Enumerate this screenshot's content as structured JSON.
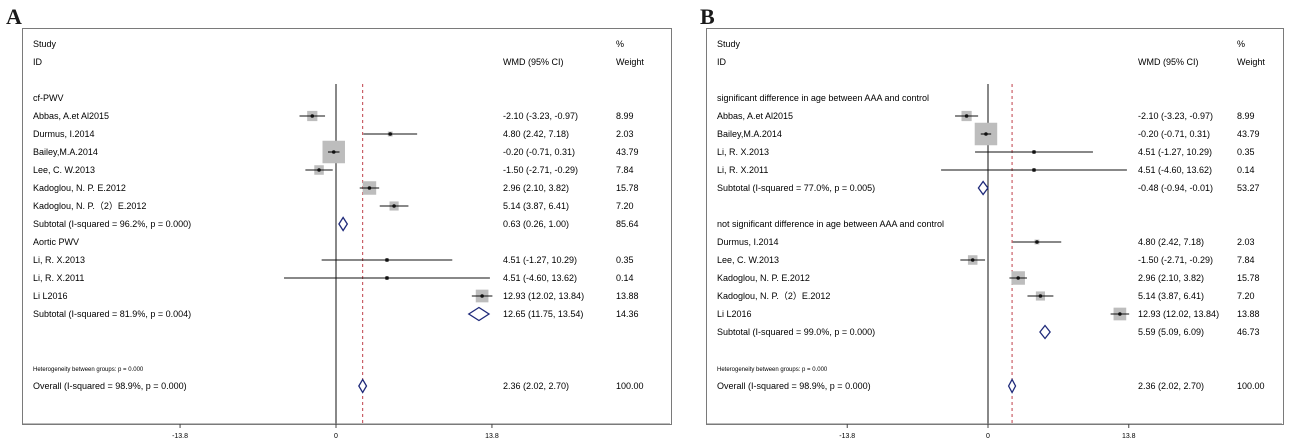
{
  "panels": [
    {
      "letter": "A",
      "header": {
        "study": "Study",
        "id": "ID",
        "wmd": "WMD (95% CI)",
        "pct": "%",
        "weight": "Weight"
      },
      "xticks": [
        -13.8,
        0,
        13.8
      ],
      "xtick_labels": [
        "-13.8",
        "0",
        "13.8"
      ],
      "overall_line": 2.36,
      "groups": [
        {
          "label": "cf-PWV",
          "studies": [
            {
              "name": "Abbas, A.et Al2015",
              "est": -2.1,
              "lo": -3.23,
              "hi": -0.97,
              "ci": "-2.10 (-3.23, -0.97)",
              "weight": "8.99",
              "w": 8.99
            },
            {
              "name": "Durmus, I.2014",
              "est": 4.8,
              "lo": 2.42,
              "hi": 7.18,
              "ci": "4.80 (2.42, 7.18)",
              "weight": "2.03",
              "w": 2.03
            },
            {
              "name": "Bailey,M.A.2014",
              "est": -0.2,
              "lo": -0.71,
              "hi": 0.31,
              "ci": "-0.20 (-0.71, 0.31)",
              "weight": "43.79",
              "w": 43.79
            },
            {
              "name": "Lee, C. W.2013",
              "est": -1.5,
              "lo": -2.71,
              "hi": -0.29,
              "ci": "-1.50 (-2.71, -0.29)",
              "weight": "7.84",
              "w": 7.84
            },
            {
              "name": "Kadoglou, N. P. E.2012",
              "est": 2.96,
              "lo": 2.1,
              "hi": 3.82,
              "ci": "2.96 (2.10, 3.82)",
              "weight": "15.78",
              "w": 15.78
            },
            {
              "name": "Kadoglou, N. P.（2）E.2012",
              "est": 5.14,
              "lo": 3.87,
              "hi": 6.41,
              "ci": "5.14 (3.87, 6.41)",
              "weight": "7.20",
              "w": 7.2
            }
          ],
          "subtotal": {
            "label": "Subtotal  (I-squared = 96.2%, p = 0.000)",
            "est": 0.63,
            "lo": 0.26,
            "hi": 1.0,
            "ci": "0.63 (0.26, 1.00)",
            "weight": "85.64"
          }
        },
        {
          "label": "Aortic PWV",
          "studies": [
            {
              "name": "Li, R. X.2013",
              "est": 4.51,
              "lo": -1.27,
              "hi": 10.29,
              "ci": "4.51 (-1.27, 10.29)",
              "weight": "0.35",
              "w": 0.35
            },
            {
              "name": "Li, R. X.2011",
              "est": 4.51,
              "lo": -4.6,
              "hi": 13.62,
              "ci": "4.51 (-4.60, 13.62)",
              "weight": "0.14",
              "w": 0.14
            },
            {
              "name": "Li L2016",
              "est": 12.93,
              "lo": 12.02,
              "hi": 13.84,
              "ci": "12.93 (12.02, 13.84)",
              "weight": "13.88",
              "w": 13.88
            }
          ],
          "subtotal": {
            "label": "Subtotal  (I-squared = 81.9%, p = 0.004)",
            "est": 12.65,
            "lo": 11.75,
            "hi": 13.54,
            "ci": "12.65 (11.75, 13.54)",
            "weight": "14.36"
          }
        }
      ],
      "heterogeneity": "Heterogeneity between groups: p = 0.000",
      "overall": {
        "label": "Overall  (I-squared = 98.9%, p = 0.000)",
        "est": 2.36,
        "lo": 2.02,
        "hi": 2.7,
        "ci": "2.36 (2.02, 2.70)",
        "weight": "100.00"
      }
    },
    {
      "letter": "B",
      "header": {
        "study": "Study",
        "id": "ID",
        "wmd": "WMD (95% CI)",
        "pct": "%",
        "weight": "Weight"
      },
      "xticks": [
        -13.8,
        0,
        13.8
      ],
      "xtick_labels": [
        "-13.8",
        "0",
        "13.8"
      ],
      "overall_line": 2.36,
      "groups": [
        {
          "label": "significant difference in age between AAA and control",
          "studies": [
            {
              "name": "Abbas, A.et Al2015",
              "est": -2.1,
              "lo": -3.23,
              "hi": -0.97,
              "ci": "-2.10 (-3.23, -0.97)",
              "weight": "8.99",
              "w": 8.99
            },
            {
              "name": "Bailey,M.A.2014",
              "est": -0.2,
              "lo": -0.71,
              "hi": 0.31,
              "ci": "-0.20 (-0.71, 0.31)",
              "weight": "43.79",
              "w": 43.79
            },
            {
              "name": "Li, R. X.2013",
              "est": 4.51,
              "lo": -1.27,
              "hi": 10.29,
              "ci": "4.51 (-1.27, 10.29)",
              "weight": "0.35",
              "w": 0.35
            },
            {
              "name": "Li, R. X.2011",
              "est": 4.51,
              "lo": -4.6,
              "hi": 13.62,
              "ci": "4.51 (-4.60, 13.62)",
              "weight": "0.14",
              "w": 0.14
            }
          ],
          "subtotal": {
            "label": "Subtotal  (I-squared = 77.0%, p = 0.005)",
            "est": -0.48,
            "lo": -0.94,
            "hi": -0.01,
            "ci": "-0.48 (-0.94, -0.01)",
            "weight": "53.27"
          }
        },
        {
          "label": "not significant difference in age between AAA and control",
          "studies": [
            {
              "name": "Durmus, I.2014",
              "est": 4.8,
              "lo": 2.42,
              "hi": 7.18,
              "ci": "4.80 (2.42, 7.18)",
              "weight": "2.03",
              "w": 2.03
            },
            {
              "name": "Lee, C. W.2013",
              "est": -1.5,
              "lo": -2.71,
              "hi": -0.29,
              "ci": "-1.50 (-2.71, -0.29)",
              "weight": "7.84",
              "w": 7.84
            },
            {
              "name": "Kadoglou, N. P. E.2012",
              "est": 2.96,
              "lo": 2.1,
              "hi": 3.82,
              "ci": "2.96 (2.10, 3.82)",
              "weight": "15.78",
              "w": 15.78
            },
            {
              "name": "Kadoglou, N. P.（2）E.2012",
              "est": 5.14,
              "lo": 3.87,
              "hi": 6.41,
              "ci": "5.14 (3.87, 6.41)",
              "weight": "7.20",
              "w": 7.2
            },
            {
              "name": "Li L2016",
              "est": 12.93,
              "lo": 12.02,
              "hi": 13.84,
              "ci": "12.93 (12.02, 13.84)",
              "weight": "13.88",
              "w": 13.88
            }
          ],
          "subtotal": {
            "label": "Subtotal  (I-squared = 99.0%, p = 0.000)",
            "est": 5.59,
            "lo": 5.09,
            "hi": 6.09,
            "ci": "5.59 (5.09, 6.09)",
            "weight": "46.73"
          }
        }
      ],
      "heterogeneity": "Heterogeneity between groups: p = 0.000",
      "overall": {
        "label": "Overall  (I-squared = 98.9%, p = 0.000)",
        "est": 2.36,
        "lo": 2.02,
        "hi": 2.7,
        "ci": "2.36 (2.02, 2.70)",
        "weight": "100.00"
      }
    }
  ],
  "chart_data": [
    {
      "type": "forest",
      "measure": "WMD (95% CI)",
      "xticks": [
        -13.8,
        0,
        13.8
      ],
      "groups": [
        {
          "label": "cf-PWV",
          "studies": [
            {
              "name": "Abbas, A.et Al2015",
              "est": -2.1,
              "lo": -3.23,
              "hi": -0.97,
              "weight": 8.99
            },
            {
              "name": "Durmus, I.2014",
              "est": 4.8,
              "lo": 2.42,
              "hi": 7.18,
              "weight": 2.03
            },
            {
              "name": "Bailey,M.A.2014",
              "est": -0.2,
              "lo": -0.71,
              "hi": 0.31,
              "weight": 43.79
            },
            {
              "name": "Lee, C. W.2013",
              "est": -1.5,
              "lo": -2.71,
              "hi": -0.29,
              "weight": 7.84
            },
            {
              "name": "Kadoglou, N. P. E.2012",
              "est": 2.96,
              "lo": 2.1,
              "hi": 3.82,
              "weight": 15.78
            },
            {
              "name": "Kadoglou, N. P.（2）E.2012",
              "est": 5.14,
              "lo": 3.87,
              "hi": 6.41,
              "weight": 7.2
            }
          ],
          "subtotal": {
            "est": 0.63,
            "lo": 0.26,
            "hi": 1.0,
            "weight": 85.64,
            "i2": "96.2%",
            "p": "0.000"
          }
        },
        {
          "label": "Aortic PWV",
          "studies": [
            {
              "name": "Li, R. X.2013",
              "est": 4.51,
              "lo": -1.27,
              "hi": 10.29,
              "weight": 0.35
            },
            {
              "name": "Li, R. X.2011",
              "est": 4.51,
              "lo": -4.6,
              "hi": 13.62,
              "weight": 0.14
            },
            {
              "name": "Li L2016",
              "est": 12.93,
              "lo": 12.02,
              "hi": 13.84,
              "weight": 13.88
            }
          ],
          "subtotal": {
            "est": 12.65,
            "lo": 11.75,
            "hi": 13.54,
            "weight": 14.36,
            "i2": "81.9%",
            "p": "0.004"
          }
        }
      ],
      "overall": {
        "est": 2.36,
        "lo": 2.02,
        "hi": 2.7,
        "weight": 100.0,
        "i2": "98.9%",
        "p": "0.000"
      }
    },
    {
      "type": "forest",
      "measure": "WMD (95% CI)",
      "xticks": [
        -13.8,
        0,
        13.8
      ],
      "groups": [
        {
          "label": "significant difference in age between AAA and control",
          "studies": [
            {
              "name": "Abbas, A.et Al2015",
              "est": -2.1,
              "lo": -3.23,
              "hi": -0.97,
              "weight": 8.99
            },
            {
              "name": "Bailey,M.A.2014",
              "est": -0.2,
              "lo": -0.71,
              "hi": 0.31,
              "weight": 43.79
            },
            {
              "name": "Li, R. X.2013",
              "est": 4.51,
              "lo": -1.27,
              "hi": 10.29,
              "weight": 0.35
            },
            {
              "name": "Li, R. X.2011",
              "est": 4.51,
              "lo": -4.6,
              "hi": 13.62,
              "weight": 0.14
            }
          ],
          "subtotal": {
            "est": -0.48,
            "lo": -0.94,
            "hi": -0.01,
            "weight": 53.27,
            "i2": "77.0%",
            "p": "0.005"
          }
        },
        {
          "label": "not significant difference in age between AAA and control",
          "studies": [
            {
              "name": "Durmus, I.2014",
              "est": 4.8,
              "lo": 2.42,
              "hi": 7.18,
              "weight": 2.03
            },
            {
              "name": "Lee, C. W.2013",
              "est": -1.5,
              "lo": -2.71,
              "hi": -0.29,
              "weight": 7.84
            },
            {
              "name": "Kadoglou, N. P. E.2012",
              "est": 2.96,
              "lo": 2.1,
              "hi": 3.82,
              "weight": 15.78
            },
            {
              "name": "Kadoglou, N. P.（2）E.2012",
              "est": 5.14,
              "lo": 3.87,
              "hi": 6.41,
              "weight": 7.2
            },
            {
              "name": "Li L2016",
              "est": 12.93,
              "lo": 12.02,
              "hi": 13.84,
              "weight": 13.88
            }
          ],
          "subtotal": {
            "est": 5.59,
            "lo": 5.09,
            "hi": 6.09,
            "weight": 46.73,
            "i2": "99.0%",
            "p": "0.000"
          }
        }
      ],
      "overall": {
        "est": 2.36,
        "lo": 2.02,
        "hi": 2.7,
        "weight": 100.0,
        "i2": "98.9%",
        "p": "0.000"
      }
    }
  ],
  "colors": {
    "box": "#bdbdbd",
    "diamond": "#1f2a7a",
    "ref_line": "#c0404a",
    "frame": "#7a7a7a",
    "text": "#1a1a1a"
  }
}
